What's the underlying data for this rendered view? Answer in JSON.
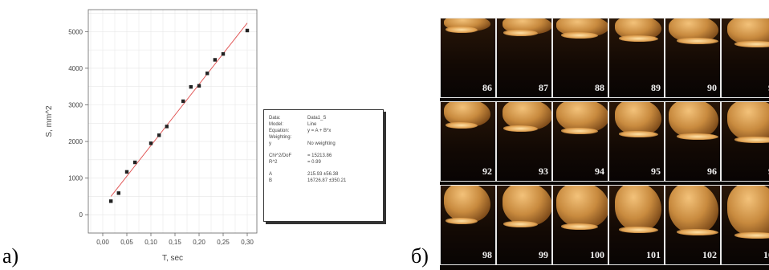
{
  "labels": {
    "panel_a": "a)",
    "panel_b": "б)"
  },
  "chart_data": {
    "type": "scatter",
    "xlabel": "T, sec",
    "ylabel": "S, mm^2",
    "xlim": [
      -0.03,
      0.32
    ],
    "ylim": [
      -500,
      5600
    ],
    "x_ticks": [
      "0,00",
      "0,05",
      "0,10",
      "0,15",
      "0,20",
      "0,25",
      "0,30"
    ],
    "x_tick_values": [
      0.0,
      0.05,
      0.1,
      0.15,
      0.2,
      0.25,
      0.3
    ],
    "y_ticks": [
      "0",
      "1000",
      "2000",
      "3000",
      "4000",
      "5000"
    ],
    "y_tick_values": [
      0,
      1000,
      2000,
      3000,
      4000,
      5000
    ],
    "grid": true,
    "series": [
      {
        "points": [
          [
            0.017,
            370
          ],
          [
            0.033,
            590
          ],
          [
            0.05,
            1170
          ],
          [
            0.067,
            1430
          ],
          [
            0.1,
            1950
          ],
          [
            0.117,
            2170
          ],
          [
            0.133,
            2410
          ],
          [
            0.167,
            3100
          ],
          [
            0.183,
            3490
          ],
          [
            0.2,
            3520
          ],
          [
            0.217,
            3860
          ],
          [
            0.233,
            4230
          ],
          [
            0.25,
            4390
          ],
          [
            0.3,
            5030
          ]
        ],
        "color": "#222222"
      }
    ],
    "fit_line": {
      "intercept": 215.93,
      "slope": 16726.87,
      "color": "#e05050"
    },
    "legend_box": {
      "rows": [
        {
          "k": "Data:",
          "v": "Data1_S"
        },
        {
          "k": "Model:",
          "v": "Line"
        },
        {
          "k": "Equation:",
          "v": "y = A + B*x"
        },
        {
          "k": "Weighting:",
          "v": ""
        },
        {
          "k": "y",
          "v": "No weighting"
        },
        {
          "k": "",
          "v": ""
        },
        {
          "k": "Chi^2/DoF",
          "v": "= 15213.86"
        },
        {
          "k": "R^2",
          "v": "= 0.99"
        },
        {
          "k": "",
          "v": ""
        },
        {
          "k": "A",
          "v": "215.93   ±56.38"
        },
        {
          "k": "B",
          "v": "16726.87   ±350.21"
        }
      ]
    }
  },
  "frames": [
    {
      "num": "86"
    },
    {
      "num": "87"
    },
    {
      "num": "88"
    },
    {
      "num": "89"
    },
    {
      "num": "90"
    },
    {
      "num": "9"
    },
    {
      "num": "92"
    },
    {
      "num": "93"
    },
    {
      "num": "94"
    },
    {
      "num": "95"
    },
    {
      "num": "96"
    },
    {
      "num": "9"
    },
    {
      "num": "98"
    },
    {
      "num": "99"
    },
    {
      "num": "100"
    },
    {
      "num": "101"
    },
    {
      "num": "102"
    },
    {
      "num": "10"
    }
  ]
}
